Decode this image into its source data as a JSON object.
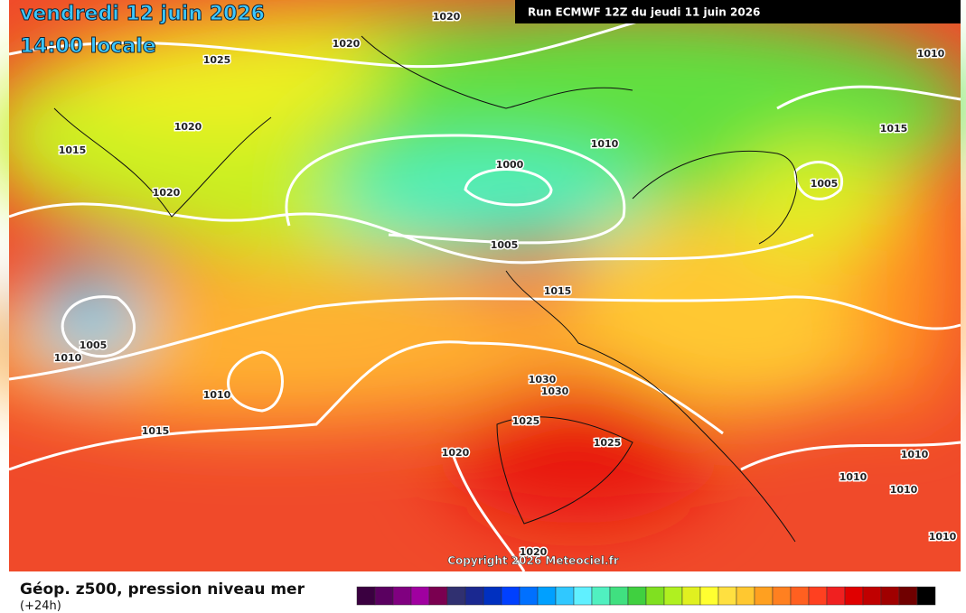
{
  "header": {
    "date": "vendredi 12 juin 2026",
    "time": "14:00 locale",
    "run": "Run ECMWF 12Z du jeudi 11 juin 2026"
  },
  "map": {
    "isobar_labels": [
      "1020",
      "1020",
      "1025",
      "1010",
      "1020",
      "1015",
      "1010",
      "1000",
      "1015",
      "1005",
      "1020",
      "1005",
      "1015",
      "1005",
      "1010",
      "1010",
      "1030",
      "1030",
      "1015",
      "1025",
      "1025",
      "1020",
      "1010",
      "1010",
      "1010",
      "1010",
      "1020"
    ],
    "copyright": "Copyright 2026 Meteociel.fr"
  },
  "footer": {
    "caption": "Géop. z500, pression niveau mer",
    "step": "(+24h)",
    "color_scale": [
      "#3a0040",
      "#5a0060",
      "#800080",
      "#a000a0",
      "#7a0050",
      "#303070",
      "#1a2890",
      "#0030c0",
      "#0040ff",
      "#0070ff",
      "#00a0ff",
      "#30c8ff",
      "#60f0ff",
      "#50f0c0",
      "#40e080",
      "#40d040",
      "#80e020",
      "#b0f020",
      "#e0f020",
      "#ffff30",
      "#ffe040",
      "#ffc830",
      "#ffa020",
      "#ff8020",
      "#ff6020",
      "#ff4020",
      "#f02020",
      "#e00000",
      "#c00000",
      "#a00000",
      "#700000",
      "#000000"
    ]
  }
}
